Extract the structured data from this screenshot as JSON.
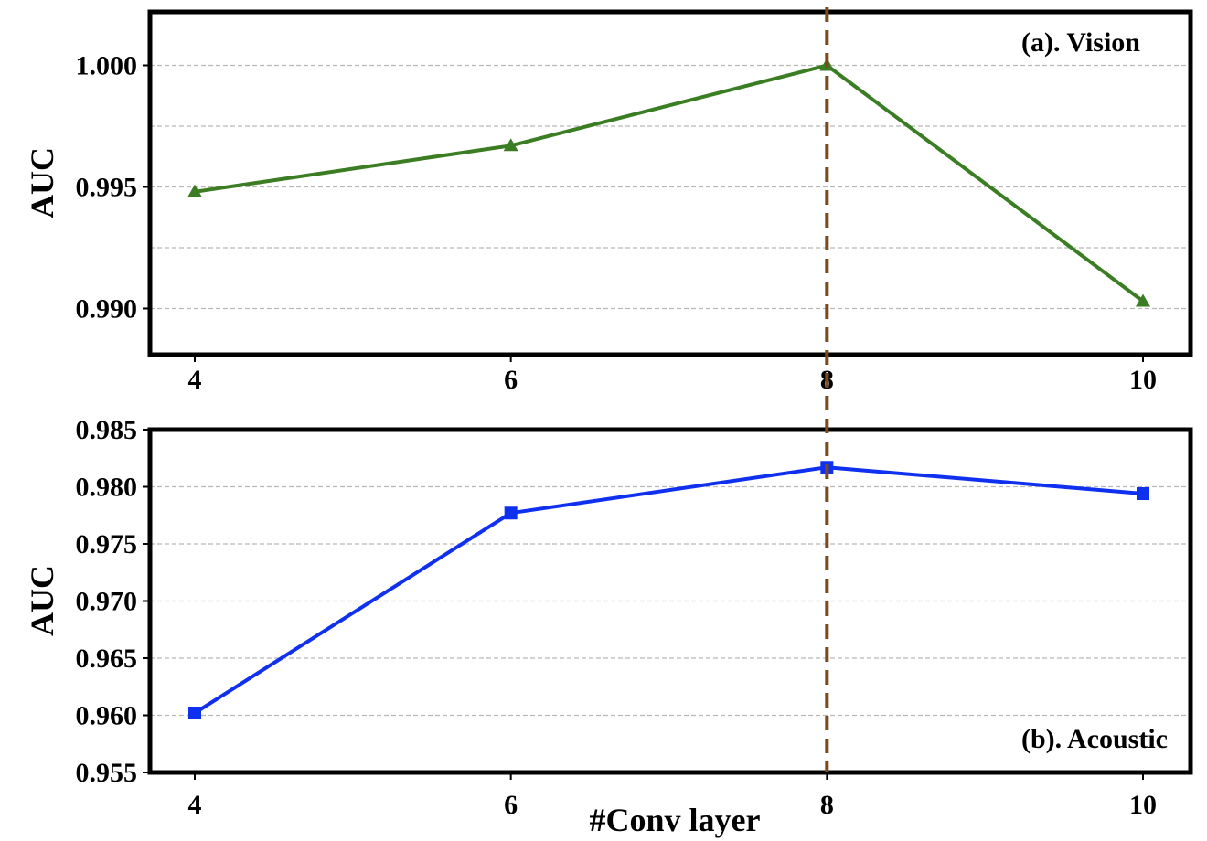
{
  "chart_data": [
    {
      "type": "line",
      "title": "(a). Vision",
      "x": [
        4,
        6,
        8,
        10
      ],
      "xticks": [
        "4",
        "6",
        "8",
        "10"
      ],
      "ylabel": "AUC",
      "ylim": [
        0.9881,
        1.0022
      ],
      "yticks": [
        0.99,
        0.995,
        1.0
      ],
      "ytick_labels": [
        "0.990",
        "0.995",
        "1.000"
      ],
      "grid_y": [
        0.99,
        0.9925,
        0.995,
        0.9975,
        1.0
      ],
      "grid": true,
      "series": [
        {
          "values": [
            0.9948,
            0.9967,
            1.0,
            0.9903
          ],
          "color": "#3a7d22",
          "marker": "triangle"
        }
      ],
      "highlight_x": 8,
      "highlight_color": "#7a4a1e"
    },
    {
      "type": "line",
      "title": "(b). Acoustic",
      "x": [
        4,
        6,
        8,
        10
      ],
      "xticks": [
        "4",
        "6",
        "8",
        "10"
      ],
      "xlabel": "#Conv layer",
      "ylabel": "AUC",
      "ylim": [
        0.955,
        0.985
      ],
      "yticks": [
        0.955,
        0.96,
        0.965,
        0.97,
        0.975,
        0.98,
        0.985
      ],
      "ytick_labels": [
        "0.955",
        "0.960",
        "0.965",
        "0.970",
        "0.975",
        "0.980",
        "0.985"
      ],
      "grid_y": [
        0.96,
        0.965,
        0.97,
        0.975,
        0.98
      ],
      "grid": true,
      "series": [
        {
          "values": [
            0.9602,
            0.9777,
            0.9817,
            0.9794
          ],
          "color": "#1030f0",
          "marker": "square"
        }
      ],
      "highlight_x": 8,
      "highlight_color": "#7a4a1e"
    }
  ]
}
